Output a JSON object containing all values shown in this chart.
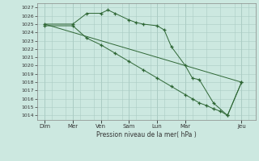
{
  "background_color": "#cce8e0",
  "grid_color": "#aaccc4",
  "line_color": "#2d6634",
  "xlabel": "Pression niveau de la mer( hPa )",
  "ylim": [
    1013.5,
    1027.5
  ],
  "yticks": [
    1014,
    1015,
    1016,
    1017,
    1018,
    1019,
    1020,
    1021,
    1022,
    1023,
    1024,
    1025,
    1026,
    1027
  ],
  "day_positions": [
    0,
    2,
    4,
    6,
    8,
    10,
    14
  ],
  "day_labels": [
    "Dim",
    "Mer",
    "Ven",
    "Sam",
    "Lun",
    "Mar",
    "Jeu"
  ],
  "xlim": [
    -0.5,
    15.0
  ],
  "line1_x": [
    0,
    2,
    3,
    4,
    4.5,
    5,
    6,
    6.5,
    7,
    8,
    8.5,
    9,
    10,
    10.5,
    11,
    12,
    13,
    14
  ],
  "line1_y": [
    1025.0,
    1025.0,
    1026.3,
    1026.3,
    1026.7,
    1026.3,
    1025.5,
    1025.2,
    1025.0,
    1024.8,
    1024.3,
    1022.3,
    1020.0,
    1018.5,
    1018.3,
    1015.5,
    1014.0,
    1018.0
  ],
  "line2_x": [
    0,
    2,
    3,
    4,
    5,
    6,
    7,
    8,
    9,
    10,
    10.5,
    11,
    11.5,
    12,
    12.5,
    13,
    14
  ],
  "line2_y": [
    1024.8,
    1024.8,
    1023.3,
    1022.5,
    1021.5,
    1020.5,
    1019.5,
    1018.5,
    1017.5,
    1016.5,
    1016.0,
    1015.5,
    1015.2,
    1014.8,
    1014.5,
    1014.0,
    1018.0
  ],
  "line3_x": [
    0,
    14
  ],
  "line3_y": [
    1025.0,
    1018.0
  ]
}
